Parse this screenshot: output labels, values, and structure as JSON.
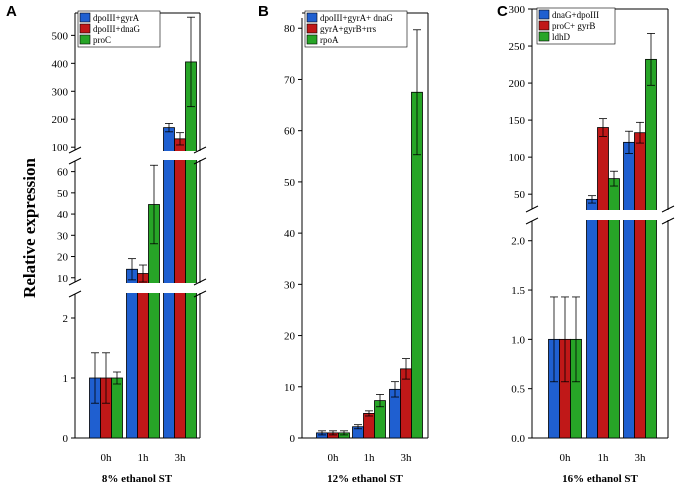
{
  "y_axis_title": "Relative expression",
  "colors": {
    "blue": "#1f5fd0",
    "red": "#c01818",
    "green": "#27a527"
  },
  "chart_data": [
    {
      "type": "bar",
      "panel_label": "A",
      "title": "",
      "xlabel": "8% ethanol ST",
      "ylabel": "Relative expression",
      "categories": [
        "0h",
        "1h",
        "3h"
      ],
      "series": [
        {
          "name": "dpoIII+gyrA",
          "color": "blue",
          "values": [
            1.0,
            14,
            170
          ],
          "errors": [
            0.42,
            5,
            15
          ]
        },
        {
          "name": "dpoIII+dnaG",
          "color": "red",
          "values": [
            1.0,
            12,
            130
          ],
          "errors": [
            0.42,
            4,
            22
          ]
        },
        {
          "name": "proC",
          "color": "green",
          "values": [
            1.0,
            44.5,
            405
          ],
          "errors": [
            0.1,
            18.5,
            160
          ]
        }
      ],
      "y_segments": [
        {
          "range": [
            0,
            2.4
          ],
          "ticks": [
            0,
            1,
            2
          ]
        },
        {
          "range": [
            8,
            65
          ],
          "ticks": [
            10,
            20,
            30,
            40,
            50,
            60
          ]
        },
        {
          "range": [
            90,
            580
          ],
          "ticks": [
            100,
            200,
            300,
            400,
            500
          ]
        }
      ]
    },
    {
      "type": "bar",
      "panel_label": "B",
      "title": "",
      "xlabel": "12% ethanol ST",
      "ylabel": "",
      "categories": [
        "0h",
        "1h",
        "3h"
      ],
      "series": [
        {
          "name": "dpoIII+gyrA+ dnaG",
          "color": "blue",
          "values": [
            1.0,
            2.2,
            9.5
          ],
          "errors": [
            0.4,
            0.4,
            1.5
          ]
        },
        {
          "name": "gyrA+gyrB+rrs",
          "color": "red",
          "values": [
            1.0,
            4.8,
            13.5
          ],
          "errors": [
            0.4,
            0.5,
            2.0
          ]
        },
        {
          "name": "rpoA",
          "color": "green",
          "values": [
            1.0,
            7.3,
            67.5
          ],
          "errors": [
            0.4,
            1.2,
            12.2
          ]
        }
      ],
      "y_segments": [
        {
          "range": [
            0,
            82
          ],
          "ticks": [
            0,
            10,
            20,
            30,
            40,
            50,
            60,
            70,
            80
          ]
        }
      ]
    },
    {
      "type": "bar",
      "panel_label": "C",
      "title": "",
      "xlabel": "16% ethanol ST",
      "ylabel": "",
      "categories": [
        "0h",
        "1h",
        "3h"
      ],
      "series": [
        {
          "name": "dnaG+dpoIII",
          "color": "blue",
          "values": [
            1.0,
            43,
            120
          ],
          "errors": [
            0.43,
            5,
            15
          ]
        },
        {
          "name": "proC+ gyrB",
          "color": "red",
          "values": [
            1.0,
            140,
            133
          ],
          "errors": [
            0.43,
            12,
            14
          ]
        },
        {
          "name": "ldhD",
          "color": "green",
          "values": [
            1.0,
            71,
            232
          ],
          "errors": [
            0.43,
            10,
            35
          ]
        }
      ],
      "y_segments": [
        {
          "range": [
            0,
            2.2
          ],
          "ticks": [
            0.0,
            0.5,
            1.0,
            1.5,
            2.0
          ]
        },
        {
          "range": [
            30,
            300
          ],
          "ticks": [
            50,
            100,
            150,
            200,
            250,
            300
          ]
        }
      ]
    }
  ]
}
